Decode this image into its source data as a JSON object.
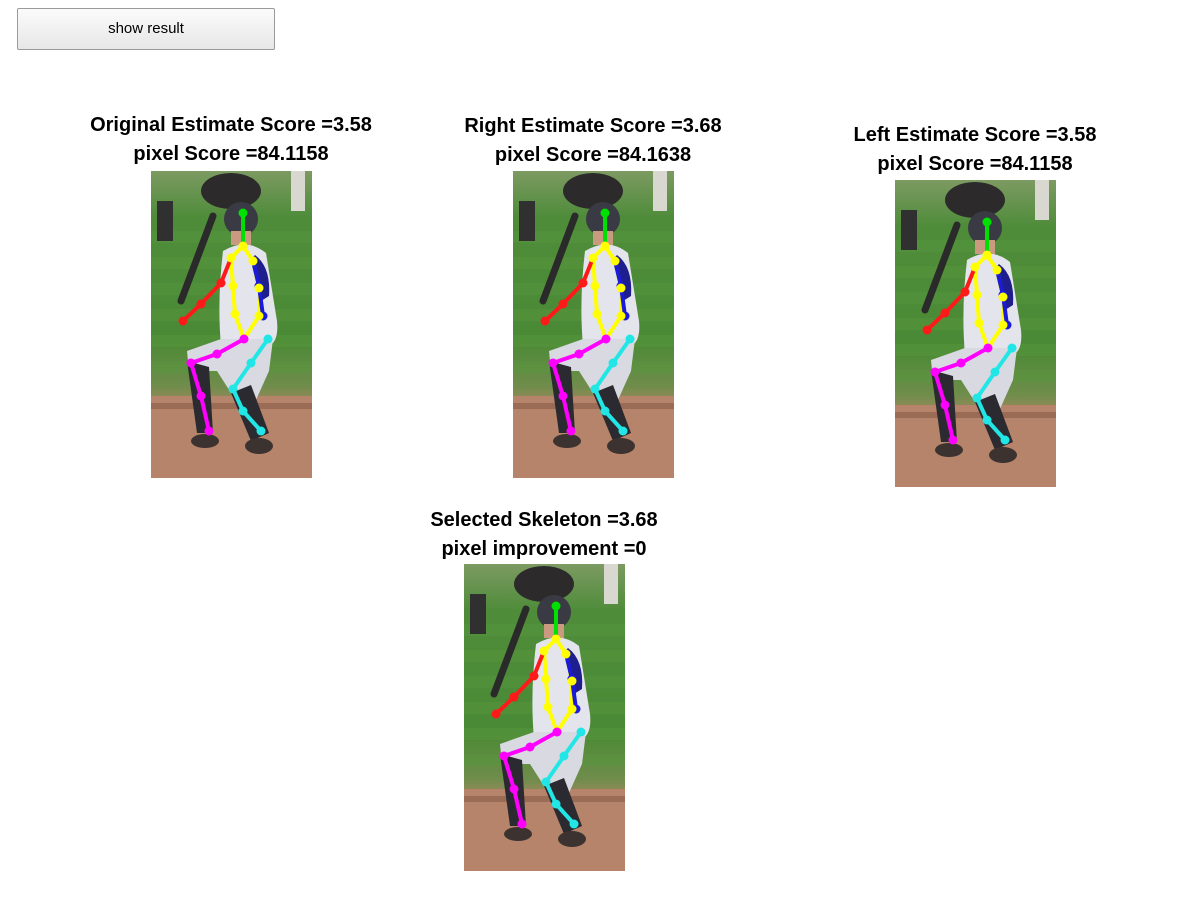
{
  "toolbar": {
    "show_result_label": "show result"
  },
  "panels": [
    {
      "id": "original",
      "title": "Original Estimate Score =3.58",
      "subtitle": "pixel Score =84.1158"
    },
    {
      "id": "right",
      "title": "Right Estimate Score =3.68",
      "subtitle": "pixel Score =84.1638"
    },
    {
      "id": "left",
      "title": "Left Estimate Score =3.58",
      "subtitle": "pixel Score =84.1158"
    },
    {
      "id": "selected",
      "title": "Selected Skeleton =3.68",
      "subtitle": "pixel improvement =0"
    }
  ],
  "skeleton_colors": {
    "head": "#00e000",
    "torso_right": "#ffff00",
    "torso_left": "#1a1ad8",
    "right_arm": "#ff1a1a",
    "right_leg": "#ff00ff",
    "left_leg": "#22e6e6"
  }
}
